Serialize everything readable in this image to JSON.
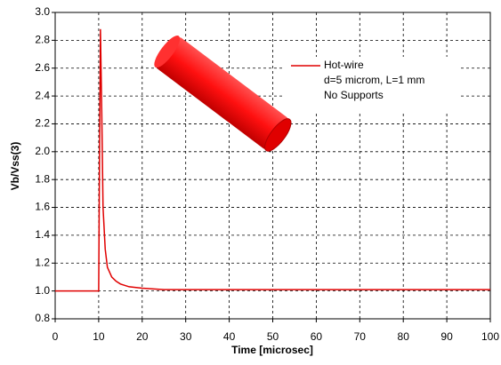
{
  "chart_data": {
    "type": "line",
    "x_label": "Time [microsec]",
    "y_label": "Vb/Vss(3)",
    "xlim": [
      0,
      100
    ],
    "xticks": [
      0,
      10,
      20,
      30,
      40,
      50,
      60,
      70,
      80,
      90,
      100
    ],
    "ylim": [
      0.8,
      3.0
    ],
    "yticks": [
      0.8,
      {
        "value": 1.0,
        "label": "1.0"
      },
      1.2,
      1.4,
      1.6,
      1.8,
      {
        "value": 2.0,
        "label": "2.0"
      },
      2.2,
      2.4,
      2.6,
      2.8,
      {
        "value": 3.0,
        "label": "3.0"
      }
    ],
    "grid": true,
    "annotations": [
      "d=5 microm, L=1 mm",
      "No Supports"
    ],
    "series": [
      {
        "name": "Hot-wire",
        "color": "#e00000",
        "x": [
          0,
          10,
          10.2,
          10.4,
          10.7,
          11,
          11.5,
          12,
          13,
          14,
          15,
          17,
          20,
          25,
          30,
          40,
          60,
          80,
          100
        ],
        "values": [
          1.0,
          1.0,
          2.0,
          2.88,
          2.3,
          1.6,
          1.3,
          1.17,
          1.1,
          1.07,
          1.05,
          1.03,
          1.02,
          1.01,
          1.01,
          1.01,
          1.01,
          1.01,
          1.01
        ]
      }
    ]
  }
}
